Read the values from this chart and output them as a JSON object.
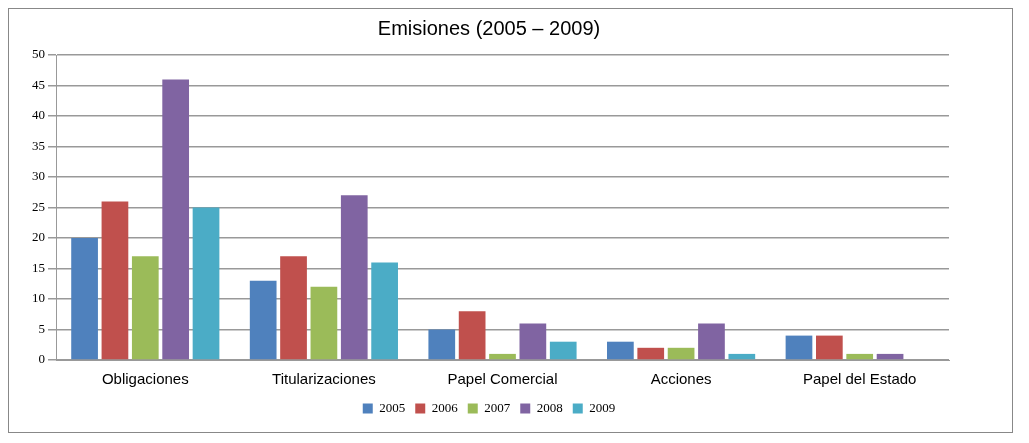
{
  "chart_data": {
    "type": "bar",
    "title": "Emisiones (2005 – 2009)",
    "categories": [
      "Obligaciones",
      "Titularizaciones",
      "Papel Comercial",
      "Acciones",
      "Papel del Estado"
    ],
    "series": [
      {
        "name": "2005",
        "color": "#4f81bd",
        "values": [
          20,
          13,
          5,
          3,
          4
        ]
      },
      {
        "name": "2006",
        "color": "#c0504d",
        "values": [
          26,
          17,
          8,
          2,
          4
        ]
      },
      {
        "name": "2007",
        "color": "#9bbb59",
        "values": [
          17,
          12,
          1,
          2,
          1
        ]
      },
      {
        "name": "2008",
        "color": "#8064a2",
        "values": [
          46,
          27,
          6,
          6,
          1
        ]
      },
      {
        "name": "2009",
        "color": "#4bacc6",
        "values": [
          25,
          16,
          3,
          1,
          0
        ]
      }
    ],
    "ylim": [
      0,
      50
    ],
    "yticks": [
      0,
      5,
      10,
      15,
      20,
      25,
      30,
      35,
      40,
      45,
      50
    ],
    "grid": "y",
    "legend": "bottom"
  }
}
